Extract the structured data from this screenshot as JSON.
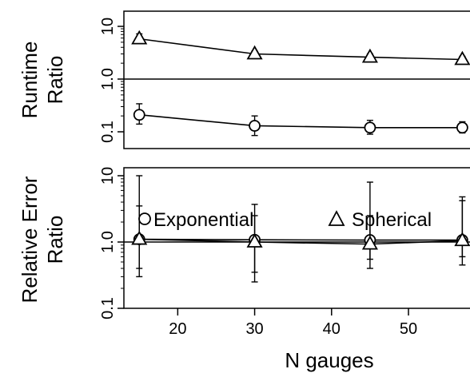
{
  "chart_data": [
    {
      "panel": "top",
      "type": "line",
      "ylabel": [
        "Runtime",
        "Ratio"
      ],
      "y_scale": "log",
      "yticks": [
        "0.1",
        "1.0",
        "10"
      ],
      "ylim": [
        0.05,
        16
      ],
      "x": [
        15,
        30,
        45,
        57
      ],
      "xlim": [
        13,
        58
      ],
      "reference_line": 1.0,
      "series": [
        {
          "name": "Spherical",
          "marker": "triangle",
          "values": [
            5.8,
            3.0,
            2.6,
            2.35
          ],
          "err_low": [
            4.8,
            2.6,
            2.3,
            2.1
          ],
          "err_high": [
            7.2,
            3.4,
            3.0,
            2.7
          ]
        },
        {
          "name": "Exponential",
          "marker": "circle",
          "values": [
            0.21,
            0.13,
            0.12,
            0.12
          ],
          "err_low": [
            0.14,
            0.085,
            0.09,
            0.095
          ],
          "err_high": [
            0.34,
            0.2,
            0.165,
            0.155
          ]
        }
      ]
    },
    {
      "panel": "bottom",
      "type": "line",
      "ylabel": [
        "Relative Error",
        "Ratio"
      ],
      "y_scale": "log",
      "yticks": [
        "0.1",
        "1.0",
        "10"
      ],
      "ylim": [
        0.075,
        12
      ],
      "x": [
        15,
        30,
        45,
        57
      ],
      "xticks": [
        "20",
        "30",
        "40",
        "50"
      ],
      "xlabel": "N gauges",
      "xlim": [
        13,
        58
      ],
      "reference_line": 1.0,
      "series": [
        {
          "name": "Exponential",
          "marker": "circle",
          "values": [
            1.1,
            1.08,
            1.07,
            1.07
          ],
          "err_low": [
            0.3,
            0.35,
            0.55,
            0.6
          ],
          "err_high": [
            10,
            2.5,
            8.0,
            4.8
          ]
        },
        {
          "name": "Spherical",
          "marker": "triangle",
          "values": [
            1.1,
            1.0,
            0.93,
            1.05
          ],
          "err_low": [
            0.4,
            0.25,
            0.4,
            0.45
          ],
          "err_high": [
            3.5,
            3.7,
            2.5,
            4.2
          ]
        }
      ],
      "legend": {
        "position": "bottom",
        "items": [
          "Exponential",
          "Spherical"
        ]
      }
    }
  ]
}
